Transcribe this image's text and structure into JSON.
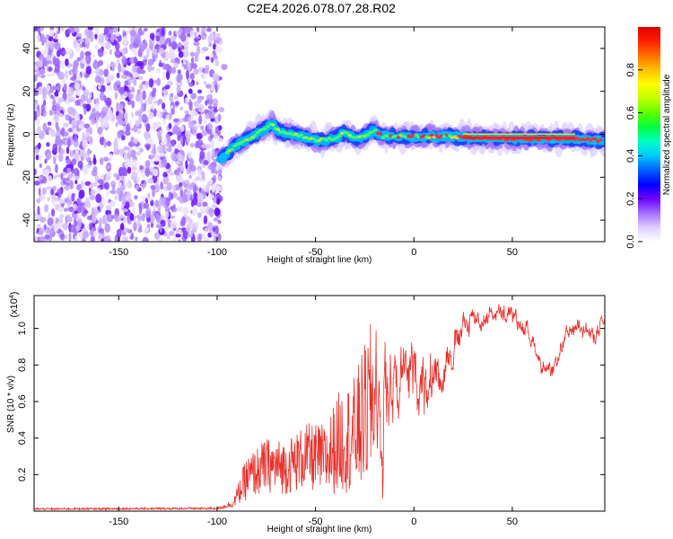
{
  "figure_title": "C2E4.2026.078.07.28.R02",
  "chart_data": [
    {
      "type": "heatmap",
      "name": "spectrogram",
      "xlabel": "Height of straight line (km)",
      "ylabel": "Frequency (Hz)",
      "xlim": [
        -193,
        97
      ],
      "ylim": [
        -50,
        50
      ],
      "x_ticks": [
        -150,
        -100,
        -50,
        0,
        50
      ],
      "y_ticks": [
        -40,
        -20,
        0,
        20,
        40
      ],
      "noise_region_x": [
        -193,
        -98
      ],
      "signal_track": {
        "x": [
          -98,
          -90,
          -80,
          -72,
          -68,
          -60,
          -50,
          -40,
          -35,
          -30,
          -25,
          -20,
          -16,
          -10,
          0,
          10,
          20,
          40,
          60,
          80,
          97
        ],
        "freq": [
          -11,
          -5,
          0,
          5,
          1,
          0,
          -3,
          -2,
          1,
          -2,
          -1,
          2,
          -1,
          -1,
          -1,
          -1,
          -1,
          -2,
          -2,
          -2,
          -3
        ]
      },
      "colorbar": {
        "label": "Normalized spectral amplitude",
        "ticks": [
          0.0,
          0.2,
          0.4,
          0.6,
          0.8
        ],
        "range": [
          0,
          1
        ],
        "colors": [
          "#ffffff",
          "#e0ccff",
          "#a070ff",
          "#7000ff",
          "#0000ff",
          "#0060ff",
          "#00c8ff",
          "#00ffc0",
          "#00ff40",
          "#60ff00",
          "#c0ff00",
          "#ffff00",
          "#ffc000",
          "#ff7000",
          "#ff2000",
          "#e00000"
        ]
      }
    },
    {
      "type": "line",
      "name": "snr",
      "xlabel": "Height of straight line (km)",
      "ylabel": "SNR (10 * v/v)",
      "multiplier_label": "(x10",
      "multiplier_exp": "4",
      "multiplier_close": ")",
      "xlim": [
        -193,
        97
      ],
      "ylim": [
        0,
        1.18
      ],
      "x_ticks": [
        -150,
        -100,
        -50,
        0,
        50
      ],
      "y_ticks": [
        0.2,
        0.4,
        0.6,
        0.8,
        1.0
      ],
      "color": "#e8302a",
      "envelope_x": [
        -193,
        -100,
        -92,
        -85,
        -75,
        -65,
        -55,
        -45,
        -38,
        -30,
        -25,
        -21,
        -18,
        -15,
        -10,
        -5,
        0,
        5,
        10,
        15,
        20,
        25,
        30,
        35,
        40,
        45,
        50,
        55,
        60,
        65,
        70,
        75,
        80,
        85,
        90,
        97
      ],
      "envelope_y": [
        0.012,
        0.015,
        0.04,
        0.18,
        0.25,
        0.24,
        0.3,
        0.28,
        0.38,
        0.42,
        0.52,
        0.62,
        0.68,
        0.72,
        0.74,
        0.72,
        0.74,
        0.76,
        0.74,
        0.82,
        0.9,
        0.98,
        1.08,
        1.04,
        1.1,
        1.05,
        1.07,
        1.02,
        0.95,
        0.8,
        0.72,
        0.9,
        0.98,
        1.05,
        0.95,
        1.02
      ],
      "spread_y": [
        0.005,
        0.006,
        0.02,
        0.12,
        0.15,
        0.15,
        0.18,
        0.2,
        0.28,
        0.32,
        0.4,
        0.45,
        0.42,
        0.35,
        0.22,
        0.2,
        0.18,
        0.18,
        0.18,
        0.14,
        0.1,
        0.08,
        0.07,
        0.06,
        0.06,
        0.06,
        0.05,
        0.05,
        0.05,
        0.05,
        0.05,
        0.05,
        0.04,
        0.05,
        0.05,
        0.05
      ]
    }
  ]
}
